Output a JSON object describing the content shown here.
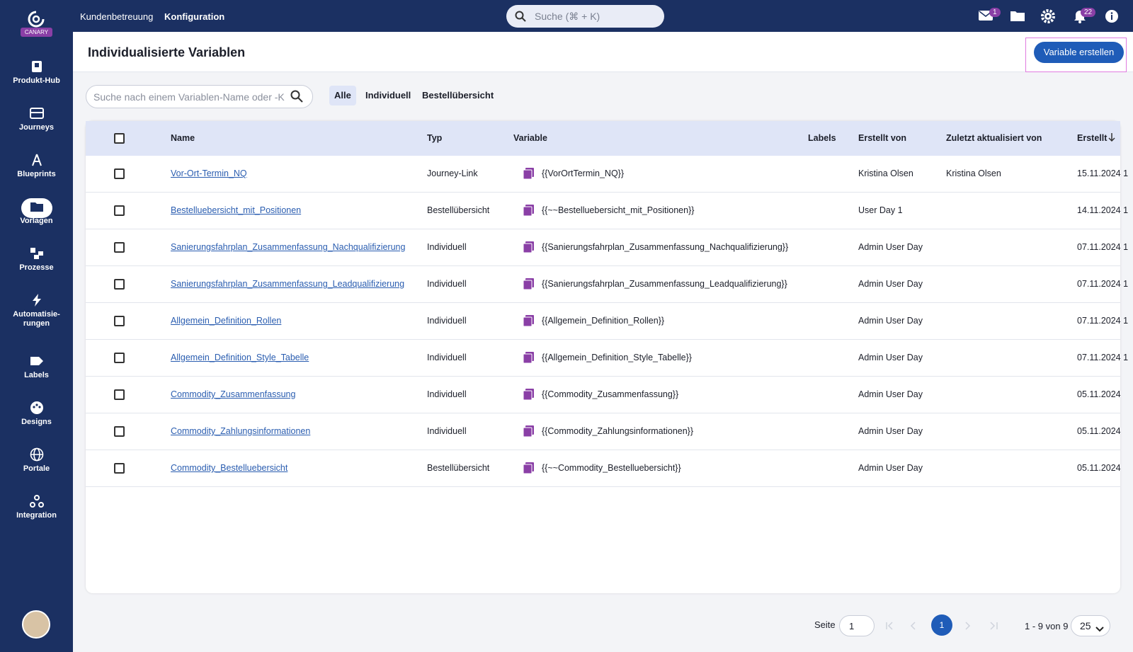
{
  "brand": "CANARY",
  "sidebar": [
    "Produkt-Hub",
    "Journeys",
    "Blueprints",
    "Vorlagen",
    "Prozesse",
    "Automatisie-rungen",
    "Labels",
    "Designs",
    "Portale",
    "Integration"
  ],
  "top_nav": [
    "Kundenbetreuung",
    "Konfiguration"
  ],
  "global_search": "Suche (⌘ + K)",
  "badges": {
    "mail": "1",
    "notifications": "22"
  },
  "header": {
    "title": "Individualisierte Variablen",
    "button": "Variable erstellen"
  },
  "filter": {
    "search_placeholder": "Suche nach einem Variablen-Name oder -K",
    "tabs": [
      "Alle",
      "Individuell",
      "Bestellübersicht"
    ]
  },
  "table": {
    "columns": [
      "Name",
      "Typ",
      "Variable",
      "Labels",
      "Erstellt von",
      "Zuletzt aktualisiert von",
      "Erstellt"
    ],
    "rows": [
      {
        "name": "Vor-Ort-Termin_NQ",
        "type": "Journey-Link",
        "variable": "{{VorOrtTermin_NQ}}",
        "created_by": "Kristina Olsen",
        "updated_by": "Kristina Olsen",
        "created": "15.11.2024 1"
      },
      {
        "name": "Bestelluebersicht_mit_Positionen",
        "type": "Bestellübersicht",
        "variable": "{{~~Bestelluebersicht_mit_Positionen}}",
        "created_by": "User Day 1",
        "created": "14.11.2024 1"
      },
      {
        "name": "Sanierungsfahrplan_Zusammenfassung_Nachqualifizierung",
        "type": "Individuell",
        "variable": "{{Sanierungsfahrplan_Zusammenfassung_Nachqualifizierung}}",
        "created_by": "Admin User Day",
        "created": "07.11.2024 1"
      },
      {
        "name": "Sanierungsfahrplan_Zusammenfassung_Leadqualifizierung",
        "type": "Individuell",
        "variable": "{{Sanierungsfahrplan_Zusammenfassung_Leadqualifizierung}}",
        "created_by": "Admin User Day",
        "created": "07.11.2024 1"
      },
      {
        "name": "Allgemein_Definition_Rollen",
        "type": "Individuell",
        "variable": "{{Allgemein_Definition_Rollen}}",
        "created_by": "Admin User Day",
        "created": "07.11.2024 1"
      },
      {
        "name": "Allgemein_Definition_Style_Tabelle",
        "type": "Individuell",
        "variable": "{{Allgemein_Definition_Style_Tabelle}}",
        "created_by": "Admin User Day",
        "created": "07.11.2024 1"
      },
      {
        "name": "Commodity_Zusammenfassung",
        "type": "Individuell",
        "variable": "{{Commodity_Zusammenfassung}}",
        "created_by": "Admin User Day",
        "created": "05.11.2024"
      },
      {
        "name": "Commodity_Zahlungsinformationen",
        "type": "Individuell",
        "variable": "{{Commodity_Zahlungsinformationen}}",
        "created_by": "Admin User Day",
        "created": "05.11.2024"
      },
      {
        "name": "Commodity_Bestelluebersicht",
        "type": "Bestellübersicht",
        "variable": "{{~~Commodity_Bestelluebersicht}}",
        "created_by": "Admin User Day",
        "created": "05.11.2024"
      }
    ]
  },
  "pagination": {
    "page_label": "Seite",
    "page_input": "1",
    "current_page": "1",
    "range": "1 - 9 von 9",
    "page_size": "25"
  }
}
